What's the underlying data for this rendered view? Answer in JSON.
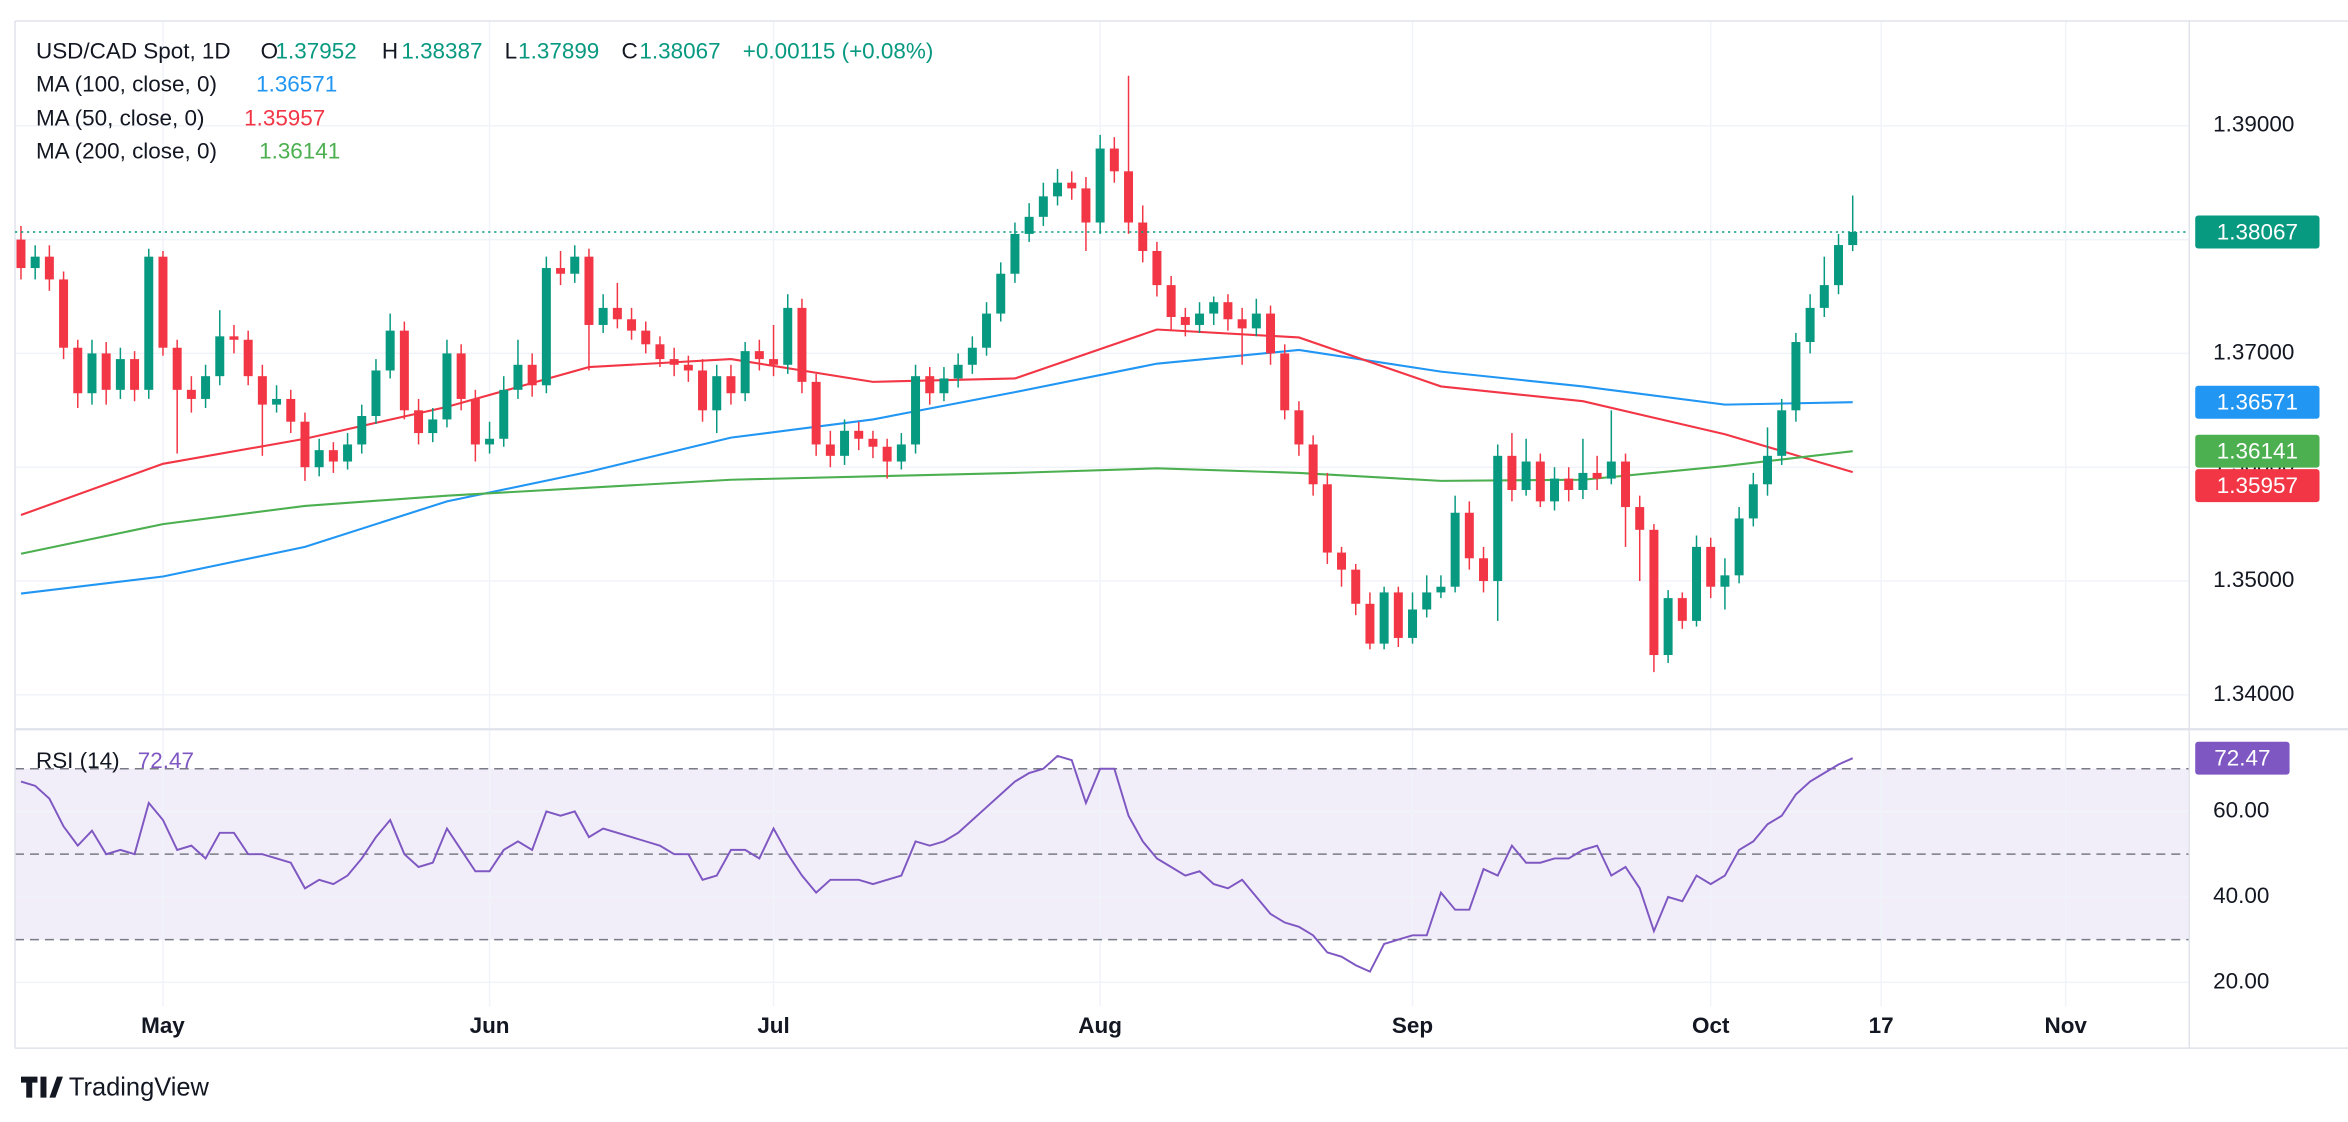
{
  "header": {
    "symbol": "USD/CAD Spot, 1D",
    "open_label": "O",
    "high_label": "H",
    "low_label": "L",
    "close_label": "C",
    "change": "+0.00115 (+0.08%)"
  },
  "brand": "TradingView",
  "chart_data": [
    {
      "type": "candlestick",
      "up_color": "#089981",
      "down_color": "#f23645",
      "candles": {
        "open": [
          1.38,
          1.3775,
          1.3785,
          1.3765,
          1.3705,
          1.3665,
          1.37,
          1.3668,
          1.3695,
          1.3668,
          1.3785,
          1.3705,
          1.3668,
          1.366,
          1.368,
          1.3715,
          1.3712,
          1.368,
          1.3655,
          1.366,
          1.364,
          1.36,
          1.3615,
          1.3605,
          1.362,
          1.3645,
          1.3685,
          1.372,
          1.365,
          1.363,
          1.3642,
          1.37,
          1.366,
          1.362,
          1.3625,
          1.3668,
          1.369,
          1.3672,
          1.3775,
          1.377,
          1.3785,
          1.3725,
          1.374,
          1.373,
          1.372,
          1.3708,
          1.3695,
          1.369,
          1.3685,
          1.365,
          1.368,
          1.3665,
          1.3702,
          1.3695,
          1.369,
          1.374,
          1.3675,
          1.362,
          1.361,
          1.3632,
          1.3625,
          1.3618,
          1.3605,
          1.362,
          1.368,
          1.3665,
          1.3678,
          1.369,
          1.3705,
          1.3735,
          1.377,
          1.3805,
          1.382,
          1.3838,
          1.385,
          1.3845,
          1.3815,
          1.388,
          1.386,
          1.3815,
          1.379,
          1.376,
          1.3732,
          1.3725,
          1.3735,
          1.3745,
          1.373,
          1.3722,
          1.3735,
          1.37,
          1.365,
          1.362,
          1.3585,
          1.3525,
          1.351,
          1.348,
          1.3445,
          1.349,
          1.345,
          1.3475,
          1.349,
          1.3495,
          1.356,
          1.352,
          1.35,
          1.361,
          1.358,
          1.3605,
          1.357,
          1.359,
          1.358,
          1.3595,
          1.359,
          1.3605,
          1.3565,
          1.3545,
          1.3435,
          1.3485,
          1.3465,
          1.353,
          1.3495,
          1.3505,
          1.3555,
          1.3585,
          1.361,
          1.365,
          1.371,
          1.374,
          1.376,
          1.37952
        ],
        "high": [
          1.3812,
          1.3795,
          1.3795,
          1.3772,
          1.3712,
          1.3712,
          1.371,
          1.3705,
          1.3702,
          1.3792,
          1.379,
          1.3712,
          1.368,
          1.369,
          1.3738,
          1.3725,
          1.372,
          1.369,
          1.3672,
          1.3668,
          1.3648,
          1.3625,
          1.3622,
          1.363,
          1.3655,
          1.3695,
          1.3735,
          1.3728,
          1.366,
          1.3652,
          1.3712,
          1.3708,
          1.3668,
          1.364,
          1.368,
          1.3712,
          1.37,
          1.3785,
          1.379,
          1.3795,
          1.3792,
          1.3752,
          1.3762,
          1.374,
          1.3728,
          1.3715,
          1.3705,
          1.3698,
          1.3695,
          1.369,
          1.369,
          1.371,
          1.3712,
          1.3725,
          1.3752,
          1.3748,
          1.3682,
          1.3632,
          1.3642,
          1.364,
          1.3632,
          1.3625,
          1.363,
          1.369,
          1.3688,
          1.3688,
          1.37,
          1.3715,
          1.3745,
          1.378,
          1.3815,
          1.3832,
          1.385,
          1.3862,
          1.386,
          1.3855,
          1.3892,
          1.389,
          1.3944,
          1.383,
          1.3798,
          1.3768,
          1.374,
          1.3745,
          1.375,
          1.3752,
          1.374,
          1.3748,
          1.3742,
          1.3708,
          1.3658,
          1.3628,
          1.3595,
          1.353,
          1.3515,
          1.349,
          1.3495,
          1.3495,
          1.349,
          1.3505,
          1.3505,
          1.3575,
          1.357,
          1.353,
          1.362,
          1.363,
          1.3625,
          1.3612,
          1.36,
          1.36,
          1.3625,
          1.361,
          1.365,
          1.3612,
          1.3575,
          1.355,
          1.3492,
          1.349,
          1.354,
          1.3538,
          1.352,
          1.3565,
          1.3595,
          1.3635,
          1.366,
          1.3718,
          1.3752,
          1.3785,
          1.3805,
          1.38387
        ],
        "low": [
          1.3765,
          1.3765,
          1.3755,
          1.3695,
          1.3652,
          1.3655,
          1.3655,
          1.366,
          1.3658,
          1.366,
          1.3698,
          1.3612,
          1.3648,
          1.3652,
          1.3672,
          1.37,
          1.3672,
          1.361,
          1.3648,
          1.363,
          1.3588,
          1.3592,
          1.3595,
          1.3598,
          1.3612,
          1.3638,
          1.3678,
          1.3642,
          1.362,
          1.3622,
          1.3635,
          1.365,
          1.3605,
          1.3612,
          1.3618,
          1.366,
          1.3662,
          1.3665,
          1.376,
          1.3762,
          1.3685,
          1.3718,
          1.3722,
          1.3712,
          1.37,
          1.3688,
          1.368,
          1.3675,
          1.364,
          1.363,
          1.3655,
          1.3658,
          1.3685,
          1.368,
          1.3682,
          1.3665,
          1.361,
          1.36,
          1.3602,
          1.3615,
          1.3608,
          1.359,
          1.3598,
          1.3612,
          1.3655,
          1.3658,
          1.367,
          1.3682,
          1.3698,
          1.3728,
          1.3762,
          1.3798,
          1.3812,
          1.383,
          1.3835,
          1.379,
          1.3805,
          1.385,
          1.3805,
          1.378,
          1.375,
          1.372,
          1.3715,
          1.3718,
          1.3725,
          1.372,
          1.369,
          1.3715,
          1.369,
          1.3642,
          1.361,
          1.3575,
          1.3515,
          1.3495,
          1.347,
          1.344,
          1.344,
          1.3442,
          1.3445,
          1.3468,
          1.3485,
          1.349,
          1.351,
          1.349,
          1.3465,
          1.357,
          1.3575,
          1.3565,
          1.3562,
          1.357,
          1.3572,
          1.358,
          1.3585,
          1.353,
          1.35,
          1.342,
          1.3428,
          1.3458,
          1.346,
          1.3485,
          1.3475,
          1.3498,
          1.3548,
          1.3575,
          1.3602,
          1.364,
          1.37,
          1.3732,
          1.3752,
          1.37899
        ],
        "close": [
          1.3775,
          1.3785,
          1.3765,
          1.3705,
          1.3665,
          1.37,
          1.3668,
          1.3695,
          1.3668,
          1.3785,
          1.3705,
          1.3668,
          1.366,
          1.368,
          1.3715,
          1.3712,
          1.368,
          1.3655,
          1.366,
          1.364,
          1.36,
          1.3615,
          1.3605,
          1.362,
          1.3645,
          1.3685,
          1.372,
          1.365,
          1.363,
          1.3642,
          1.37,
          1.366,
          1.362,
          1.3625,
          1.3668,
          1.369,
          1.3672,
          1.3775,
          1.377,
          1.3785,
          1.3725,
          1.374,
          1.373,
          1.372,
          1.3708,
          1.3695,
          1.369,
          1.3685,
          1.365,
          1.368,
          1.3665,
          1.3702,
          1.3695,
          1.369,
          1.374,
          1.3675,
          1.362,
          1.361,
          1.3632,
          1.3625,
          1.3618,
          1.3605,
          1.362,
          1.368,
          1.3665,
          1.3678,
          1.369,
          1.3705,
          1.3735,
          1.377,
          1.3805,
          1.382,
          1.3838,
          1.385,
          1.3845,
          1.3815,
          1.388,
          1.386,
          1.3815,
          1.379,
          1.376,
          1.3732,
          1.3725,
          1.3735,
          1.3745,
          1.373,
          1.3722,
          1.3735,
          1.37,
          1.365,
          1.362,
          1.3585,
          1.3525,
          1.351,
          1.348,
          1.3445,
          1.349,
          1.345,
          1.3475,
          1.349,
          1.3495,
          1.356,
          1.352,
          1.35,
          1.361,
          1.358,
          1.3605,
          1.357,
          1.359,
          1.358,
          1.3595,
          1.359,
          1.3605,
          1.3565,
          1.3545,
          1.3435,
          1.3485,
          1.3465,
          1.353,
          1.3495,
          1.3505,
          1.3555,
          1.3585,
          1.361,
          1.365,
          1.371,
          1.374,
          1.376,
          1.37952,
          1.38067
        ]
      },
      "series": [
        {
          "name": "MA (100, close, 0)",
          "color": "#2196f3",
          "x": [
            0,
            10,
            20,
            30,
            40,
            50,
            60,
            70,
            80,
            90,
            100,
            110,
            120,
            129
          ],
          "values": [
            1.3489,
            1.3504,
            1.353,
            1.357,
            1.3596,
            1.3626,
            1.3642,
            1.3666,
            1.3691,
            1.3703,
            1.3684,
            1.3671,
            1.3655,
            1.36571
          ]
        },
        {
          "name": "MA (50, close, 0)",
          "color": "#f23645",
          "x": [
            0,
            10,
            20,
            30,
            40,
            50,
            60,
            70,
            80,
            90,
            100,
            110,
            120,
            129
          ],
          "values": [
            1.3558,
            1.3603,
            1.3625,
            1.3653,
            1.3688,
            1.3695,
            1.3675,
            1.3678,
            1.3721,
            1.3714,
            1.3671,
            1.3658,
            1.3629,
            1.35957
          ]
        },
        {
          "name": "MA (200, close, 0)",
          "color": "#4caf50",
          "x": [
            0,
            10,
            20,
            30,
            40,
            50,
            60,
            70,
            80,
            90,
            100,
            110,
            120,
            129
          ],
          "values": [
            1.3524,
            1.355,
            1.3566,
            1.3575,
            1.3582,
            1.3589,
            1.3592,
            1.3595,
            1.3599,
            1.3595,
            1.3588,
            1.3589,
            1.3601,
            1.36141
          ]
        }
      ],
      "ylim": [
        1.33711,
        1.39921
      ],
      "yticks": [
        {
          "value": 1.34,
          "label": "1.34000"
        },
        {
          "value": 1.35,
          "label": "1.35000"
        },
        {
          "value": 1.36,
          "label": "1.36000"
        },
        {
          "value": 1.37,
          "label": "1.37000"
        },
        {
          "value": 1.38,
          "label": "1.38000"
        },
        {
          "value": 1.39,
          "label": "1.39000"
        }
      ],
      "xlim": [
        -0.42,
        152.7
      ],
      "xticks": [
        {
          "value": 10,
          "label": "May"
        },
        {
          "value": 33,
          "label": "Jun"
        },
        {
          "value": 53,
          "label": "Jul"
        },
        {
          "value": 76,
          "label": "Aug"
        },
        {
          "value": 98,
          "label": "Sep"
        },
        {
          "value": 119,
          "label": "Oct"
        },
        {
          "value": 131,
          "label": "17"
        },
        {
          "value": 144,
          "label": "Nov"
        }
      ],
      "grid": true
    },
    {
      "type": "line",
      "name": "RSI (14)",
      "color": "#7e57c2",
      "values": [
        67,
        66,
        63,
        56.5,
        52,
        55.5,
        50,
        51,
        50,
        62,
        58,
        51,
        52,
        49,
        55,
        55,
        50,
        50,
        49,
        48,
        42,
        44,
        43,
        45,
        49,
        54,
        58,
        50,
        47,
        48,
        56,
        51,
        46,
        46,
        51,
        53,
        51,
        60,
        59,
        60,
        54,
        56,
        55,
        54,
        53,
        52,
        50,
        50,
        44,
        45,
        51,
        51,
        49,
        56,
        50,
        45,
        41,
        44,
        44,
        44,
        43,
        44,
        45,
        53,
        52,
        53,
        55,
        58,
        61,
        64,
        67,
        69,
        70,
        73,
        72,
        62,
        70,
        70,
        59,
        53,
        49,
        47,
        45,
        46,
        43,
        42,
        44,
        40,
        36,
        34,
        33,
        31,
        27,
        26,
        24,
        22.5,
        29,
        30,
        31,
        31,
        41,
        37,
        37,
        46.5,
        45,
        52,
        48,
        48,
        49,
        49,
        51,
        52,
        45,
        47,
        42,
        32,
        40,
        39,
        45,
        43,
        45,
        51,
        53,
        57,
        59,
        64,
        67,
        69,
        71,
        72.47
      ],
      "bands": [
        30,
        50,
        70
      ],
      "ylim": [
        14.4,
        78.9
      ],
      "yticks": [
        {
          "value": 20,
          "label": "20.00"
        },
        {
          "value": 40,
          "label": "40.00"
        },
        {
          "value": 60,
          "label": "60.00"
        }
      ],
      "grid": true
    }
  ]
}
